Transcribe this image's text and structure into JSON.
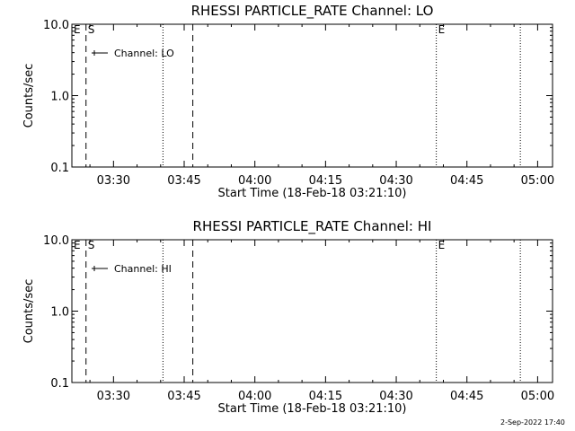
{
  "footer": {
    "timestamp": "2-Sep-2022 17:40"
  },
  "chart_data": [
    {
      "type": "line",
      "title": "RHESSI PARTICLE_RATE Channel: LO",
      "xlabel": "Start Time (18-Feb-18 03:21:10)",
      "ylabel": "Counts/sec",
      "yscale": "log",
      "ylim": [
        0.1,
        10.0
      ],
      "xlim": [
        "03:21:10",
        "05:03:10"
      ],
      "xticks": [
        "03:30",
        "03:45",
        "04:00",
        "04:15",
        "04:30",
        "04:45",
        "05:00"
      ],
      "yticks": [
        "0.1",
        "1.0",
        "10.0"
      ],
      "series": [
        {
          "name": "Channel: LO",
          "x": [],
          "y": []
        }
      ],
      "legend": "top-left",
      "grid": false,
      "event_lines": [
        {
          "x": "03:24:10",
          "style": "dashed"
        },
        {
          "x": "03:46:50",
          "style": "dashed"
        },
        {
          "x": "03:40:30",
          "style": "dotted"
        },
        {
          "x": "04:38:30",
          "style": "dotted"
        },
        {
          "x": "04:56:20",
          "style": "dotted"
        }
      ],
      "markers": [
        {
          "label": "E",
          "x": "03:21:10"
        },
        {
          "label": "S",
          "x": "03:24:10"
        },
        {
          "label": "E",
          "x": "04:38:30"
        }
      ]
    },
    {
      "type": "line",
      "title": "RHESSI PARTICLE_RATE Channel: HI",
      "xlabel": "Start Time (18-Feb-18 03:21:10)",
      "ylabel": "Counts/sec",
      "yscale": "log",
      "ylim": [
        0.1,
        10.0
      ],
      "xlim": [
        "03:21:10",
        "05:03:10"
      ],
      "xticks": [
        "03:30",
        "03:45",
        "04:00",
        "04:15",
        "04:30",
        "04:45",
        "05:00"
      ],
      "yticks": [
        "0.1",
        "1.0",
        "10.0"
      ],
      "series": [
        {
          "name": "Channel: HI",
          "x": [],
          "y": []
        }
      ],
      "legend": "top-left",
      "grid": false,
      "event_lines": [
        {
          "x": "03:24:10",
          "style": "dashed"
        },
        {
          "x": "03:46:50",
          "style": "dashed"
        },
        {
          "x": "03:40:30",
          "style": "dotted"
        },
        {
          "x": "04:38:30",
          "style": "dotted"
        },
        {
          "x": "04:56:20",
          "style": "dotted"
        }
      ],
      "markers": [
        {
          "label": "E",
          "x": "03:21:10"
        },
        {
          "label": "S",
          "x": "03:24:10"
        },
        {
          "label": "E",
          "x": "04:38:30"
        }
      ]
    }
  ]
}
